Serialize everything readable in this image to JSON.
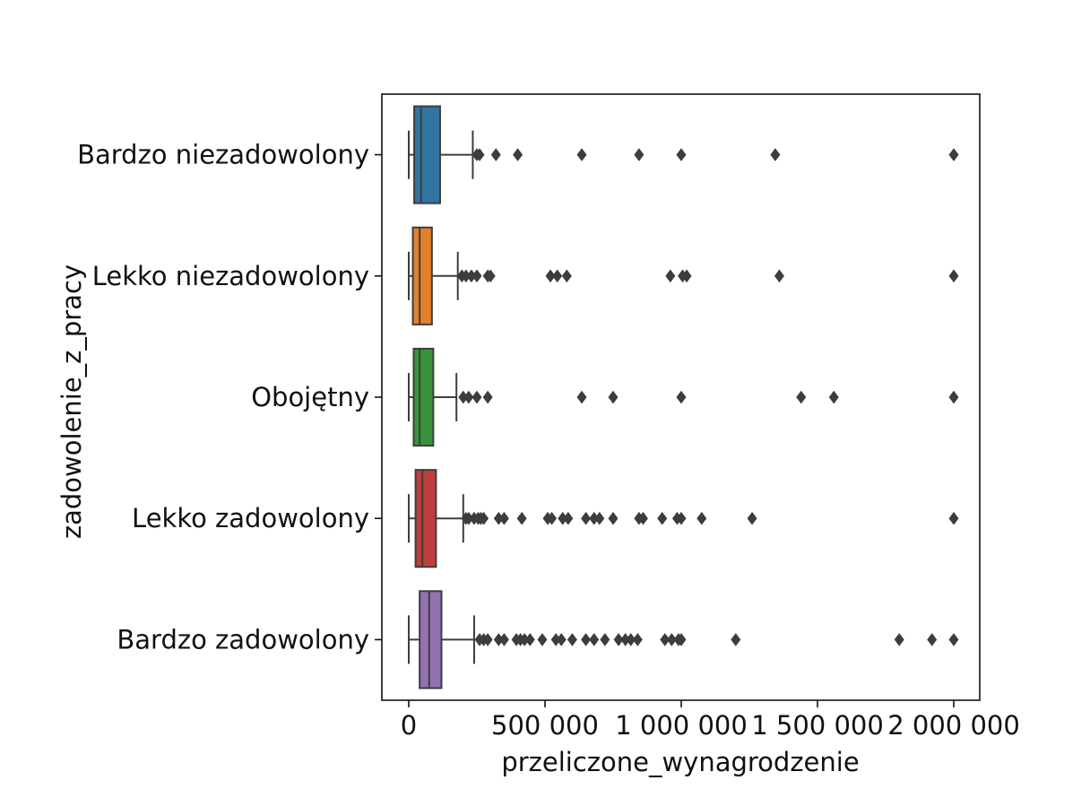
{
  "chart_data": {
    "type": "box",
    "orientation": "horizontal",
    "title": "",
    "xlabel": "przeliczone_wynagrodzenie",
    "ylabel": "zadowolenie_z_pracy",
    "xlim": [
      -100000,
      2100000
    ],
    "xticks": [
      0,
      500000,
      1000000,
      1500000,
      2000000
    ],
    "xtick_labels": [
      "0",
      "500 000",
      "1 000 000",
      "1 500 000",
      "2 000 000"
    ],
    "grid": false,
    "legend": "none",
    "series": [
      {
        "name": "Bardzo niezadowolony",
        "color": "#3274a1",
        "whisker_low": 0,
        "q1": 20000,
        "median": 45000,
        "q3": 115000,
        "whisker_high": 235000,
        "outliers": [
          250000,
          260000,
          320000,
          400000,
          635000,
          845000,
          1000000,
          1345000,
          2000000
        ]
      },
      {
        "name": "Lekko niezadowolony",
        "color": "#e1812c",
        "whisker_low": 0,
        "q1": 15000,
        "median": 40000,
        "q3": 85000,
        "whisker_high": 180000,
        "outliers": [
          195000,
          210000,
          230000,
          250000,
          290000,
          300000,
          520000,
          545000,
          580000,
          960000,
          1005000,
          1020000,
          1360000,
          2000000
        ]
      },
      {
        "name": "Obojętny",
        "color": "#3a923a",
        "whisker_low": 0,
        "q1": 18000,
        "median": 40000,
        "q3": 90000,
        "whisker_high": 175000,
        "outliers": [
          200000,
          220000,
          250000,
          290000,
          635000,
          750000,
          1000000,
          1440000,
          1560000,
          2000000
        ]
      },
      {
        "name": "Lekko zadowolony",
        "color": "#c03d3e",
        "whisker_low": 0,
        "q1": 25000,
        "median": 50000,
        "q3": 100000,
        "whisker_high": 200000,
        "outliers": [
          210000,
          220000,
          240000,
          255000,
          265000,
          275000,
          330000,
          350000,
          415000,
          510000,
          525000,
          565000,
          585000,
          650000,
          680000,
          700000,
          750000,
          845000,
          860000,
          930000,
          985000,
          1000000,
          1075000,
          1260000,
          2000000
        ]
      },
      {
        "name": "Bardzo zadowolony",
        "color": "#9372b2",
        "whisker_low": 0,
        "q1": 40000,
        "median": 75000,
        "q3": 120000,
        "whisker_high": 240000,
        "outliers": [
          260000,
          275000,
          290000,
          330000,
          350000,
          395000,
          410000,
          425000,
          445000,
          490000,
          540000,
          560000,
          600000,
          650000,
          680000,
          720000,
          770000,
          795000,
          815000,
          840000,
          940000,
          965000,
          990000,
          1000000,
          1200000,
          1800000,
          1920000,
          2000000
        ]
      }
    ]
  }
}
